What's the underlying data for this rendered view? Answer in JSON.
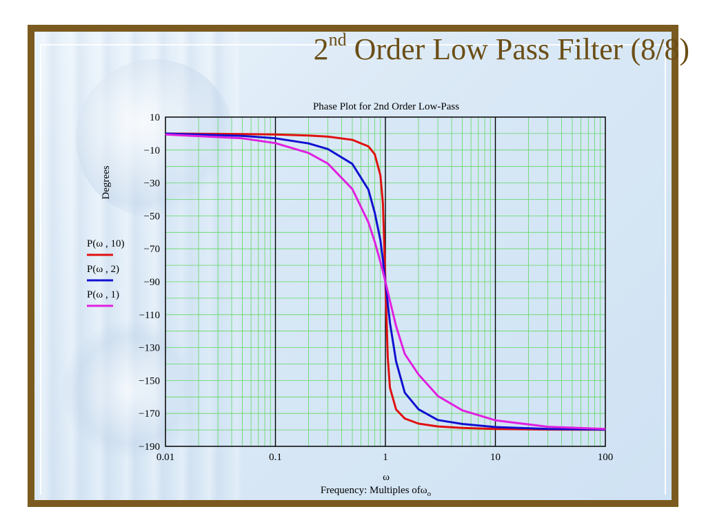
{
  "slide": {
    "title_main": "2",
    "title_sup": "nd",
    "title_rest": " Order Low Pass Filter (8/8)"
  },
  "chart_data": {
    "type": "line",
    "title": "Phase Plot for 2nd Order Low-Pass",
    "ylabel": "Degrees",
    "xlabel_symbol": "ω",
    "xlabel": "Frequency: Multiples of",
    "xlabel_tail": "ω",
    "xlabel_sub": "o",
    "x_scale": "log",
    "xlim": [
      0.01,
      100
    ],
    "ylim": [
      -190,
      10
    ],
    "x_ticks": [
      0.01,
      0.1,
      1,
      10,
      100
    ],
    "x_tick_labels": [
      "0.01",
      "0.1",
      "1",
      "10",
      "100"
    ],
    "y_ticks": [
      10,
      -10,
      -30,
      -50,
      -70,
      -90,
      -110,
      -130,
      -150,
      -170,
      -190
    ],
    "y_tick_labels": [
      "10",
      "−10",
      "−30",
      "−50",
      "−70",
      "−90",
      "−110",
      "−130",
      "−150",
      "−170",
      "−190"
    ],
    "grid": true,
    "legend_position": "left",
    "series": [
      {
        "name": "P(ω , 10)",
        "color": "#e01010",
        "x": [
          0.01,
          0.05,
          0.1,
          0.2,
          0.3,
          0.5,
          0.7,
          0.8,
          0.9,
          0.95,
          1,
          1.05,
          1.1,
          1.25,
          1.5,
          2,
          3,
          5,
          10,
          30,
          100
        ],
        "y": [
          0,
          -0.3,
          -0.6,
          -1.2,
          -1.9,
          -3.8,
          -7.8,
          -12.5,
          -25.3,
          -42.3,
          -90,
          -135.9,
          -154.4,
          -167.6,
          -173.1,
          -176.2,
          -177.9,
          -178.8,
          -179.4,
          -179.8,
          -179.9
        ]
      },
      {
        "name": "P(ω , 2)",
        "color": "#1010d0",
        "x": [
          0.01,
          0.05,
          0.1,
          0.2,
          0.3,
          0.5,
          0.7,
          0.8,
          0.9,
          0.95,
          1,
          1.05,
          1.1,
          1.25,
          1.5,
          2,
          3,
          5,
          10,
          30,
          100
        ],
        "y": [
          0,
          -1.4,
          -2.9,
          -6.0,
          -9.4,
          -18.4,
          -34.0,
          -48.0,
          -64.6,
          -76.8,
          -90,
          -103.1,
          -115.0,
          -138.4,
          -157.4,
          -167.5,
          -174.0,
          -176.4,
          -178.3,
          -179.4,
          -179.8
        ]
      },
      {
        "name": "P(ω , 1)",
        "color": "#e020e0",
        "x": [
          0.01,
          0.05,
          0.1,
          0.2,
          0.3,
          0.5,
          0.7,
          0.8,
          0.9,
          0.95,
          1,
          1.05,
          1.1,
          1.25,
          1.5,
          2,
          3,
          5,
          10,
          30,
          100
        ],
        "y": [
          -0.6,
          -2.9,
          -5.8,
          -11.8,
          -18.3,
          -33.7,
          -53.9,
          -65.7,
          -77.9,
          -83.9,
          -90,
          -96.0,
          -101.7,
          -117.0,
          -133.9,
          -146.3,
          -159.4,
          -168.1,
          -174.2,
          -178.1,
          -179.4
        ]
      }
    ]
  }
}
